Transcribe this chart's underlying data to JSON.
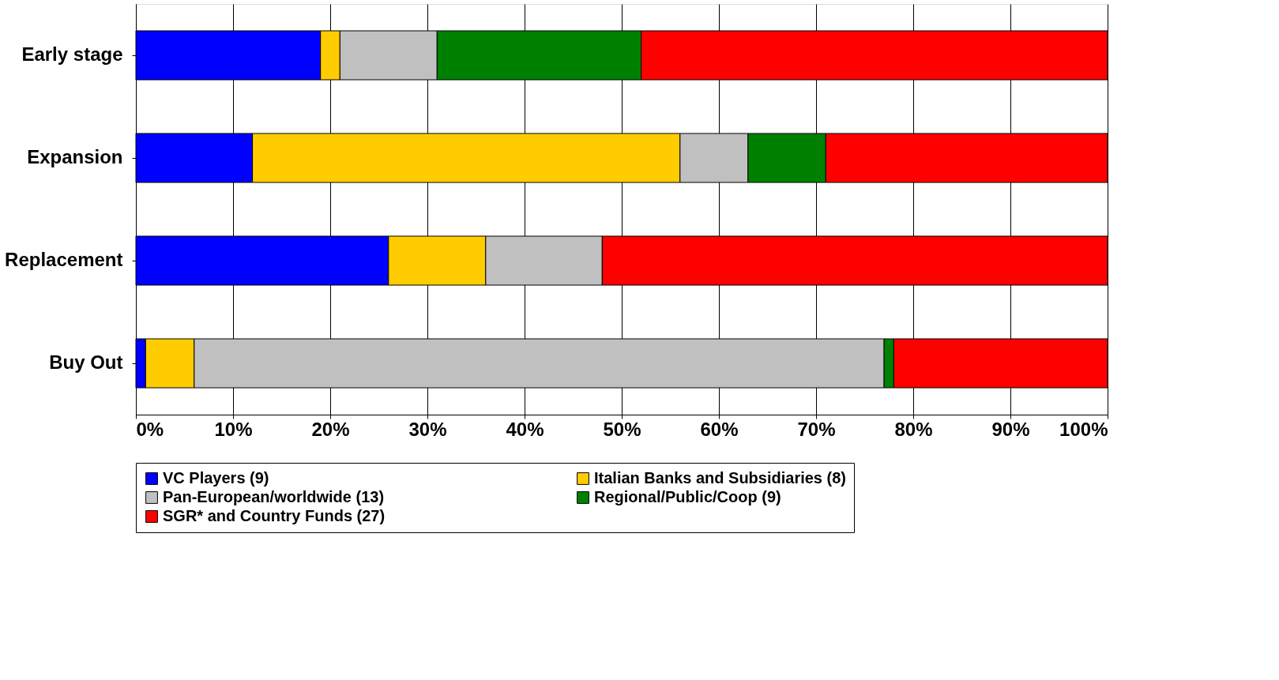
{
  "chart_data": {
    "type": "bar",
    "orientation": "horizontal",
    "stacked": true,
    "categories": [
      "Early stage",
      "Expansion",
      "Replacement",
      "Buy Out"
    ],
    "series": [
      {
        "name": "VC Players (9)",
        "color": "#0000ff",
        "values": [
          19,
          12,
          26,
          1
        ]
      },
      {
        "name": "Italian Banks and Subsidiaries (8)",
        "color": "#ffcc00",
        "values": [
          2,
          44,
          10,
          5
        ]
      },
      {
        "name": "Pan-European/worldwide (13)",
        "color": "#c0c0c0",
        "values": [
          10,
          7,
          12,
          71
        ]
      },
      {
        "name": "Regional/Public/Coop (9)",
        "color": "#008000",
        "values": [
          21,
          8,
          0,
          1
        ]
      },
      {
        "name": "SGR* and Country Funds (27)",
        "color": "#ff0000",
        "values": [
          48,
          29,
          52,
          22
        ]
      }
    ],
    "xlim": [
      0,
      100
    ],
    "xticks": [
      {
        "value": 0,
        "label": "0%"
      },
      {
        "value": 10,
        "label": "10%"
      },
      {
        "value": 20,
        "label": "20%"
      },
      {
        "value": 30,
        "label": "30%"
      },
      {
        "value": 40,
        "label": "40%"
      },
      {
        "value": 50,
        "label": "50%"
      },
      {
        "value": 60,
        "label": "60%"
      },
      {
        "value": 70,
        "label": "70%"
      },
      {
        "value": 80,
        "label": "80%"
      },
      {
        "value": 90,
        "label": "90%"
      },
      {
        "value": 100,
        "label": "100%"
      }
    ],
    "grid": "x",
    "legend": "bottom"
  }
}
